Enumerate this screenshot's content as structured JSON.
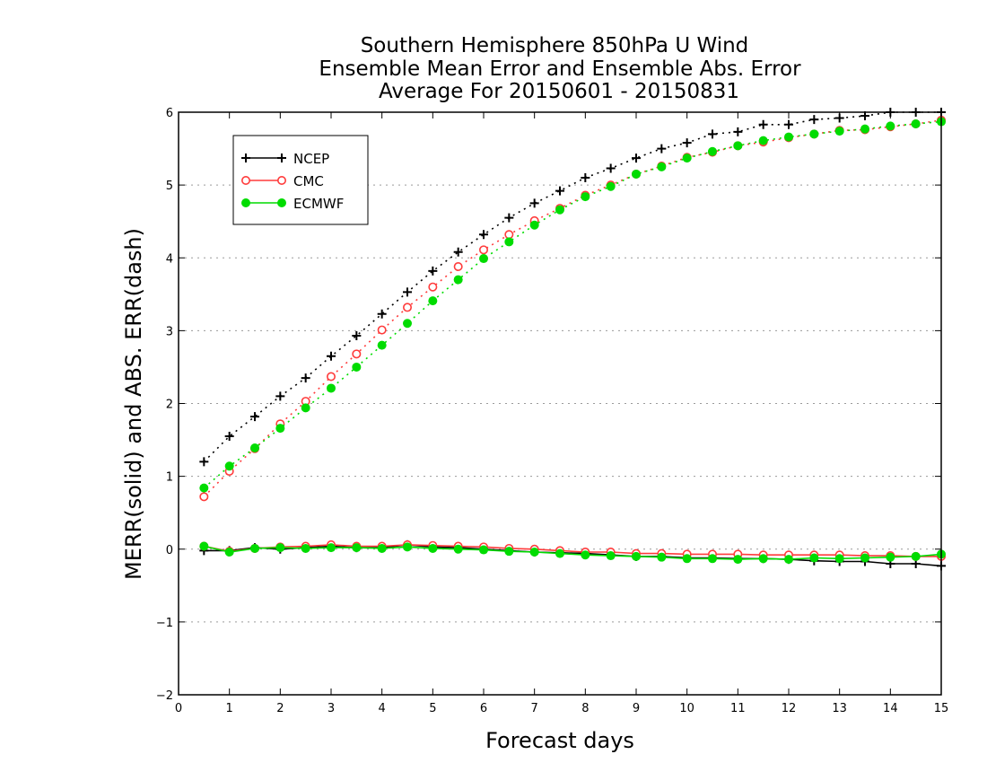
{
  "chart_data": {
    "type": "line",
    "title": "Southern Hemisphere 850hPa U Wind",
    "subtitle": "Ensemble Mean Error and Ensemble Abs. Error",
    "subtitle2": "Average For 20150601 - 20150831",
    "xlabel": "Forecast days",
    "ylabel": "MERR(solid) and ABS. ERR(dash)",
    "xlim": [
      0,
      15
    ],
    "ylim": [
      -2,
      6
    ],
    "xticks": [
      "0",
      "1",
      "2",
      "3",
      "4",
      "5",
      "6",
      "7",
      "8",
      "9",
      "10",
      "11",
      "12",
      "13",
      "14",
      "15"
    ],
    "yticks": [
      "−2",
      "−1",
      "0",
      "1",
      "2",
      "3",
      "4",
      "5",
      "6"
    ],
    "grid": true,
    "legend_position": "top-left",
    "x": [
      0.5,
      1,
      1.5,
      2,
      2.5,
      3,
      3.5,
      4,
      4.5,
      5,
      5.5,
      6,
      6.5,
      7,
      7.5,
      8,
      8.5,
      9,
      9.5,
      10,
      10.5,
      11,
      11.5,
      12,
      12.5,
      13,
      13.5,
      14,
      14.5,
      15
    ],
    "series": [
      {
        "name": "NCEP",
        "color": "#000000",
        "marker": "plus",
        "merr": [
          -0.02,
          -0.02,
          0.02,
          0.0,
          0.02,
          0.04,
          0.02,
          0.02,
          0.06,
          0.03,
          0.02,
          0.0,
          -0.02,
          -0.04,
          -0.05,
          -0.06,
          -0.08,
          -0.1,
          -0.1,
          -0.12,
          -0.12,
          -0.13,
          -0.13,
          -0.14,
          -0.16,
          -0.17,
          -0.17,
          -0.2,
          -0.2,
          -0.23
        ],
        "abs_err": [
          1.2,
          1.55,
          1.82,
          2.1,
          2.35,
          2.65,
          2.93,
          3.23,
          3.53,
          3.82,
          4.08,
          4.32,
          4.55,
          4.75,
          4.92,
          5.1,
          5.23,
          5.37,
          5.5,
          5.58,
          5.7,
          5.73,
          5.83,
          5.83,
          5.9,
          5.92,
          5.95,
          6.0,
          6.0,
          6.0
        ]
      },
      {
        "name": "CMC",
        "color": "#ff3b3b",
        "marker": "open-circle",
        "merr": [
          0.04,
          -0.03,
          0.01,
          0.03,
          0.04,
          0.06,
          0.04,
          0.04,
          0.06,
          0.05,
          0.04,
          0.03,
          0.01,
          0.0,
          -0.02,
          -0.04,
          -0.04,
          -0.06,
          -0.06,
          -0.07,
          -0.07,
          -0.07,
          -0.08,
          -0.08,
          -0.08,
          -0.08,
          -0.09,
          -0.09,
          -0.1,
          -0.1
        ],
        "abs_err": [
          0.72,
          1.07,
          1.38,
          1.72,
          2.03,
          2.37,
          2.68,
          3.01,
          3.32,
          3.6,
          3.88,
          4.11,
          4.32,
          4.51,
          4.68,
          4.86,
          5.0,
          5.15,
          5.26,
          5.38,
          5.45,
          5.54,
          5.59,
          5.65,
          5.7,
          5.75,
          5.76,
          5.8,
          5.84,
          5.89
        ]
      },
      {
        "name": "ECMWF",
        "color": "#00dc00",
        "marker": "filled-circle",
        "merr": [
          0.04,
          -0.04,
          0.01,
          0.02,
          0.01,
          0.02,
          0.02,
          0.01,
          0.03,
          0.01,
          0.0,
          -0.01,
          -0.03,
          -0.04,
          -0.06,
          -0.08,
          -0.09,
          -0.1,
          -0.11,
          -0.13,
          -0.13,
          -0.14,
          -0.13,
          -0.14,
          -0.12,
          -0.13,
          -0.12,
          -0.11,
          -0.1,
          -0.07
        ],
        "abs_err": [
          0.84,
          1.14,
          1.39,
          1.66,
          1.94,
          2.21,
          2.5,
          2.8,
          3.1,
          3.41,
          3.7,
          3.99,
          4.22,
          4.45,
          4.66,
          4.84,
          4.98,
          5.15,
          5.25,
          5.37,
          5.46,
          5.54,
          5.61,
          5.66,
          5.7,
          5.74,
          5.77,
          5.81,
          5.84,
          5.87
        ]
      }
    ]
  }
}
